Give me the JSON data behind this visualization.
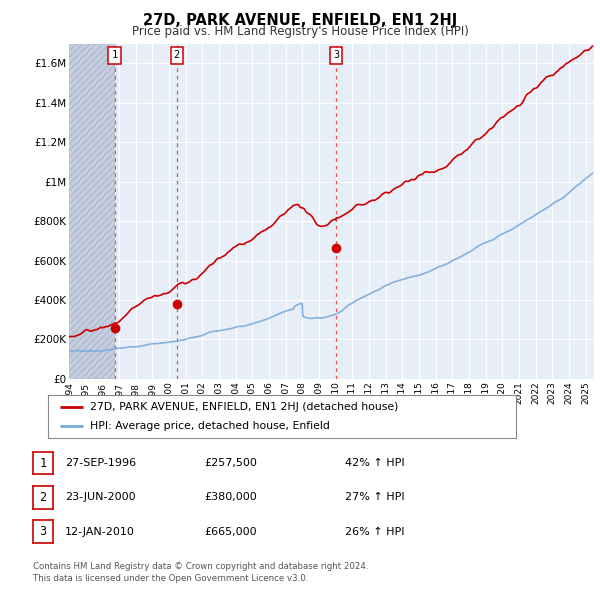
{
  "title": "27D, PARK AVENUE, ENFIELD, EN1 2HJ",
  "subtitle": "Price paid vs. HM Land Registry's House Price Index (HPI)",
  "legend_label_red": "27D, PARK AVENUE, ENFIELD, EN1 2HJ (detached house)",
  "legend_label_blue": "HPI: Average price, detached house, Enfield",
  "sale_events": [
    {
      "label": "1",
      "date_str": "27-SEP-1996",
      "date_x": 1996.74,
      "price": 257500
    },
    {
      "label": "2",
      "date_str": "23-JUN-2000",
      "date_x": 2000.47,
      "price": 380000
    },
    {
      "label": "3",
      "date_str": "12-JAN-2010",
      "date_x": 2010.03,
      "price": 665000
    }
  ],
  "table_rows": [
    {
      "label": "1",
      "date": "27-SEP-1996",
      "price": "£257,500",
      "pct_hpi": "42% ↑ HPI"
    },
    {
      "label": "2",
      "date": "23-JUN-2000",
      "price": "£380,000",
      "pct_hpi": "27% ↑ HPI"
    },
    {
      "label": "3",
      "date": "12-JAN-2010",
      "price": "£665,000",
      "pct_hpi": "26% ↑ HPI"
    }
  ],
  "copyright_text": "Contains HM Land Registry data © Crown copyright and database right 2024.\nThis data is licensed under the Open Government Licence v3.0.",
  "ylim": [
    0,
    1700000
  ],
  "xlim_start": 1994.0,
  "xlim_end": 2025.5,
  "yticks": [
    0,
    200000,
    400000,
    600000,
    800000,
    1000000,
    1200000,
    1400000,
    1600000
  ],
  "ytick_labels": [
    "£0",
    "£200K",
    "£400K",
    "£600K",
    "£800K",
    "£1M",
    "£1.2M",
    "£1.4M",
    "£1.6M"
  ],
  "xticks": [
    1994,
    1995,
    1996,
    1997,
    1998,
    1999,
    2000,
    2001,
    2002,
    2003,
    2004,
    2005,
    2006,
    2007,
    2008,
    2009,
    2010,
    2011,
    2012,
    2013,
    2014,
    2015,
    2016,
    2017,
    2018,
    2019,
    2020,
    2021,
    2022,
    2023,
    2024,
    2025
  ],
  "bg_color": "#e8eef8",
  "hatch_region_end": 1996.74,
  "red_color": "#cc0000",
  "blue_color": "#7aaadd",
  "dashed_color": "#dd4444",
  "grid_color": "#ffffff",
  "hatch_color": "#c5cedf"
}
